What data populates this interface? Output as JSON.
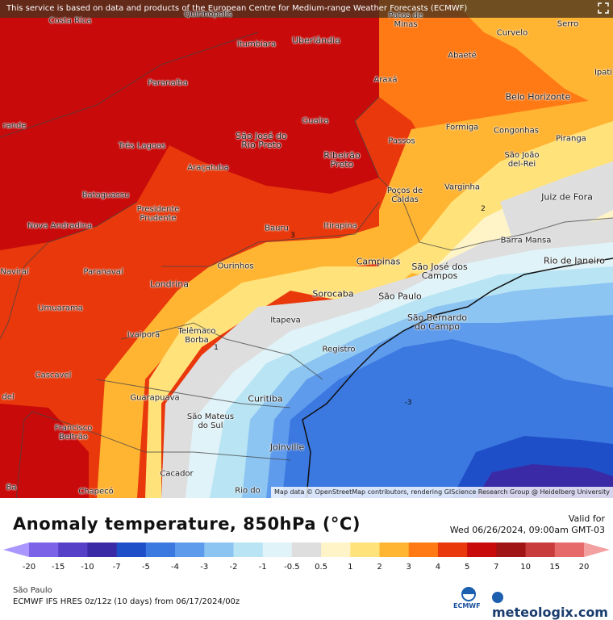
{
  "map": {
    "notice": "This service is based on data and products of the European Centre for Medium-range Weather Forecasts (ECMWF)",
    "attribution": "Map data © OpenStreetMap contributors, rendering GIScience Research Group @ Heidelberg University",
    "cities": [
      "Costa Rica",
      "Quirinópolis",
      "Patos de Minas",
      "Curvelo",
      "Serro",
      "Itumbiara",
      "Uberlândia",
      "Abaeté",
      "Paranaíba",
      "Araxá",
      "Ipati",
      "Belo Horizonte",
      "Guaíra",
      "Formiga",
      "Congonhas",
      "Piranga",
      "São José do Rio Preto",
      "Três Lagoas",
      "Ribeirão Preto",
      "Passos",
      "São João del-Rei",
      "Araçatuba",
      "Varginha",
      "Poços de Caldas",
      "Juiz de Fora",
      "Bataguassu",
      "Presidente Prudente",
      "Nova Andradina",
      "Bauru",
      "Itirapina",
      "Barra Mansa",
      "Campinas",
      "São José dos Campos",
      "Rio de Janeiro",
      "Naviraí",
      "Paranavaí",
      "Ourinhos",
      "Londrina",
      "Sorocaba",
      "São Paulo",
      "Umuarama",
      "São Bernardo do Campo",
      "Itapeva",
      "Ivaiporã",
      "Telêmaco Borba",
      "Registro",
      "Cascavel",
      "Guarapuava",
      "Curitiba",
      "Francisco Beltrão",
      "São Mateus do Sul",
      "Joinville",
      "Cacador",
      "Chapecó",
      "Rio do",
      "rande",
      "del",
      "Ba"
    ],
    "contour_labels": [
      "3",
      "2",
      "1",
      "-3"
    ]
  },
  "legend": {
    "title": "Anomaly temperature, 850hPa (°C)",
    "valid_label": "Valid for",
    "valid_date": "Wed 06/26/2024, 09:00am GMT-03",
    "ticks": [
      "-20",
      "-15",
      "-10",
      "-7",
      "-5",
      "-4",
      "-3",
      "-2",
      "-1",
      "-0.5",
      "0.5",
      "1",
      "2",
      "3",
      "4",
      "5",
      "7",
      "10",
      "15",
      "20"
    ],
    "colors": [
      "#aa96ff",
      "#7b62e6",
      "#5740c8",
      "#3b2aa6",
      "#1f4fc8",
      "#3b78e0",
      "#5f9bec",
      "#8cc4f2",
      "#b8e4f4",
      "#e0f3f8",
      "#dedede",
      "#fff4c8",
      "#ffe27a",
      "#ffb432",
      "#ff7a14",
      "#e8380c",
      "#c80a0a",
      "#a01416",
      "#c83c3c",
      "#e66a6a",
      "#f2a0a0"
    ],
    "region": "São Paulo",
    "model": "ECMWF IFS HRES 0z/12z (10 days) from  06/17/2024/00z",
    "ecmwf_logo": "ECMWF",
    "brand": "meteologix.com"
  },
  "icons": {
    "expand": "expand-icon"
  }
}
